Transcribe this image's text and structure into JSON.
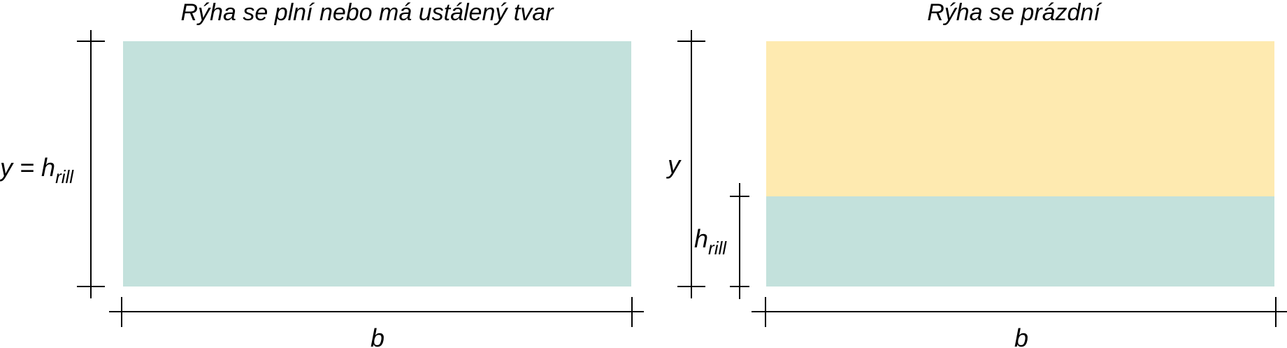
{
  "colors": {
    "water": "#c3e1dc",
    "empty": "#feeab0",
    "line": "#000000"
  },
  "left_panel": {
    "title": "Rýha se plní nebo má ustálený tvar",
    "height_label_main": "y = h",
    "height_label_sub": "rill",
    "width_label": "b"
  },
  "right_panel": {
    "title": "Rýha se prázdní",
    "total_height_label": "y",
    "water_height_label_main": "h",
    "water_height_label_sub": "rill",
    "width_label": "b"
  }
}
